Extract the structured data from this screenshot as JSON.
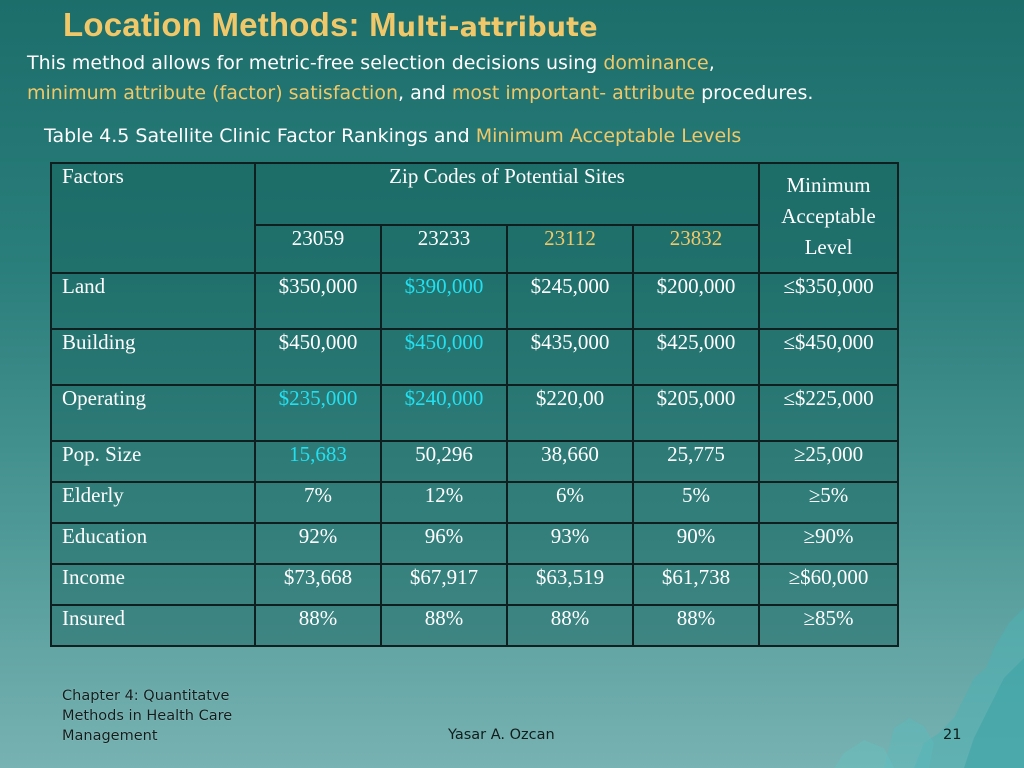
{
  "slide": {
    "title_part1": "Location Methods: M",
    "title_part2": "ulti-attribute",
    "intro": {
      "t1": "This method allows for metric-free selection decisions using ",
      "h1": "dominance",
      "t2": ",",
      "h2": "minimum attribute (factor) satisfaction",
      "t3": ", and ",
      "h3": "most important- attribute",
      "t4": " procedures."
    },
    "caption": {
      "main": "Table 4.5 Satellite Clinic Factor Rankings and ",
      "highlight": "Minimum Acceptable Levels"
    }
  },
  "table": {
    "header": {
      "factors": "Factors",
      "zip_group": "Zip Codes of Potential Sites",
      "minimum": "Minimum Acceptable Level",
      "zips": [
        "23059",
        "23233",
        "23112",
        "23832"
      ]
    },
    "rows": [
      {
        "factor": "Land",
        "values": [
          "$350,000",
          "$390,000",
          "$245,000",
          "$200,000"
        ],
        "minimum": "≤$350,000"
      },
      {
        "factor": "Building",
        "values": [
          "$450,000",
          "$450,000",
          "$435,000",
          "$425,000"
        ],
        "minimum": "≤$450,000"
      },
      {
        "factor": "Operating",
        "values": [
          "$235,000",
          "$240,000",
          "$220,00",
          "$205,000"
        ],
        "minimum": "≤$225,000"
      },
      {
        "factor": "Pop. Size",
        "values": [
          "15,683",
          "50,296",
          "38,660",
          "25,775"
        ],
        "minimum": "≥25,000"
      },
      {
        "factor": "Elderly",
        "values": [
          "7%",
          "12%",
          "6%",
          "5%"
        ],
        "minimum": "≥5%"
      },
      {
        "factor": "Education",
        "values": [
          "92%",
          "96%",
          "93%",
          "90%"
        ],
        "minimum": "≥90%"
      },
      {
        "factor": "Income",
        "values": [
          "$73,668",
          "$67,917",
          "$63,519",
          "$61,738"
        ],
        "minimum": "≥$60,000"
      },
      {
        "factor": "Insured",
        "values": [
          "88%",
          "88%",
          "88%",
          "88%"
        ],
        "minimum": "≥85%"
      }
    ]
  },
  "colors": {
    "title": "#f0c869",
    "highlight": "#f0c869",
    "violation": "#22e0f0",
    "background": "#2a7e7b"
  },
  "footer": {
    "chapter": "Chapter 4: Quantitatve Methods in Health Care Management",
    "author": "Yasar A. Ozcan",
    "page": "21"
  }
}
